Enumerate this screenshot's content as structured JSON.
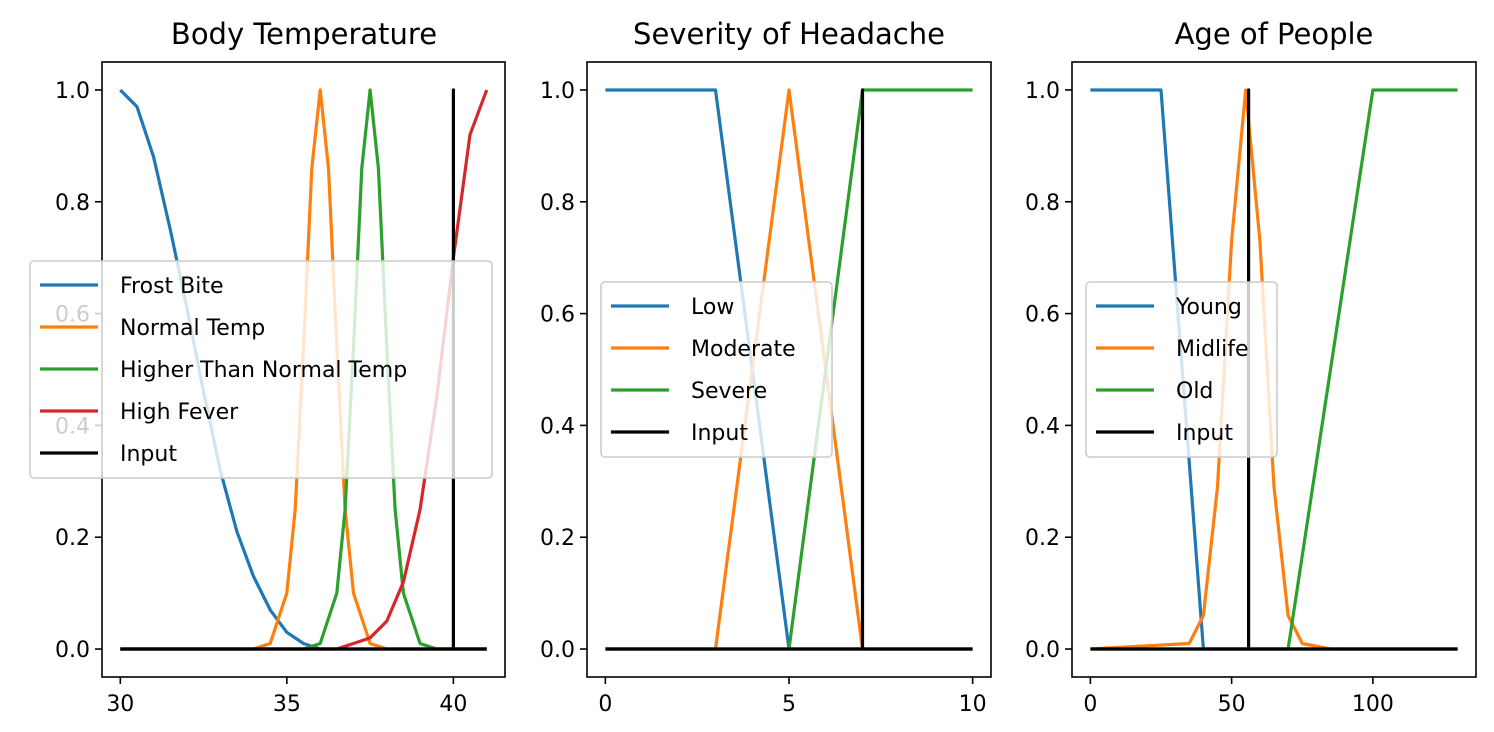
{
  "chart_data": [
    {
      "type": "line",
      "title": "Body Temperature",
      "xlabel": "",
      "ylabel": "",
      "xlim": [
        29.45,
        41.55
      ],
      "ylim": [
        -0.05,
        1.05
      ],
      "xticks": [
        30,
        35,
        40
      ],
      "yticks": [
        0.0,
        0.2,
        0.4,
        0.6,
        0.8,
        1.0
      ],
      "legend_position": "center-left",
      "series": [
        {
          "name": "Frost Bite",
          "color": "#1f77b4",
          "x": [
            30,
            30.5,
            31,
            31.5,
            32,
            32.5,
            33,
            33.5,
            34,
            34.5,
            35,
            35.5,
            36,
            36.5,
            37,
            38,
            39,
            40,
            41
          ],
          "y": [
            1.0,
            0.97,
            0.88,
            0.75,
            0.61,
            0.46,
            0.32,
            0.21,
            0.13,
            0.07,
            0.03,
            0.01,
            0.0,
            0.0,
            0.0,
            0.0,
            0.0,
            0.0,
            0.0
          ]
        },
        {
          "name": "Normal Temp",
          "color": "#ff7f0e",
          "x": [
            30,
            34,
            34.5,
            35,
            35.25,
            35.5,
            35.75,
            36,
            36.25,
            36.5,
            36.75,
            37,
            37.5,
            38,
            39,
            40,
            41
          ],
          "y": [
            0.0,
            0.0,
            0.01,
            0.1,
            0.25,
            0.54,
            0.86,
            1.0,
            0.86,
            0.54,
            0.25,
            0.1,
            0.01,
            0.0,
            0.0,
            0.0,
            0.0
          ]
        },
        {
          "name": "Higher Than Normal Temp",
          "color": "#2ca02c",
          "x": [
            30,
            35.5,
            36,
            36.5,
            36.75,
            37,
            37.25,
            37.5,
            37.75,
            38,
            38.25,
            38.5,
            39,
            39.5,
            40,
            41
          ],
          "y": [
            0.0,
            0.0,
            0.01,
            0.1,
            0.25,
            0.54,
            0.86,
            1.0,
            0.86,
            0.54,
            0.25,
            0.1,
            0.01,
            0.0,
            0.0,
            0.0
          ]
        },
        {
          "name": "High Fever",
          "color": "#d62728",
          "x": [
            30,
            36,
            36.5,
            37,
            37.5,
            38,
            38.5,
            39,
            39.5,
            40,
            40.5,
            41
          ],
          "y": [
            0.0,
            0.0,
            0.0,
            0.01,
            0.02,
            0.05,
            0.12,
            0.25,
            0.45,
            0.7,
            0.92,
            1.0
          ]
        },
        {
          "name": "Input",
          "color": "#000000",
          "x": [
            30,
            40,
            40,
            40,
            41
          ],
          "y": [
            0.0,
            0.0,
            1.0,
            0.0,
            0.0
          ]
        }
      ]
    },
    {
      "type": "line",
      "title": "Severity of Headache",
      "xlabel": "",
      "ylabel": "",
      "xlim": [
        -0.5,
        10.5
      ],
      "ylim": [
        -0.05,
        1.05
      ],
      "xticks": [
        0,
        5,
        10
      ],
      "yticks": [
        0.0,
        0.2,
        0.4,
        0.6,
        0.8,
        1.0
      ],
      "legend_position": "center-left",
      "series": [
        {
          "name": "Low",
          "color": "#1f77b4",
          "x": [
            0,
            3,
            5,
            10
          ],
          "y": [
            1.0,
            1.0,
            0.0,
            0.0
          ]
        },
        {
          "name": "Moderate",
          "color": "#ff7f0e",
          "x": [
            0,
            3,
            5,
            7,
            10
          ],
          "y": [
            0.0,
            0.0,
            1.0,
            0.0,
            0.0
          ]
        },
        {
          "name": "Severe",
          "color": "#2ca02c",
          "x": [
            0,
            5,
            7,
            10
          ],
          "y": [
            0.0,
            0.0,
            1.0,
            1.0
          ]
        },
        {
          "name": "Input",
          "color": "#000000",
          "x": [
            0,
            7,
            7,
            7,
            10
          ],
          "y": [
            0.0,
            0.0,
            1.0,
            0.0,
            0.0
          ]
        }
      ]
    },
    {
      "type": "line",
      "title": "Age of People",
      "xlabel": "",
      "ylabel": "",
      "xlim": [
        -6.5,
        136.5
      ],
      "ylim": [
        -0.05,
        1.05
      ],
      "xticks": [
        0,
        50,
        100
      ],
      "yticks": [
        0.0,
        0.2,
        0.4,
        0.6,
        0.8,
        1.0
      ],
      "legend_position": "center-left",
      "series": [
        {
          "name": "Young",
          "color": "#1f77b4",
          "x": [
            0,
            25,
            40,
            130
          ],
          "y": [
            1.0,
            1.0,
            0.0,
            0.0
          ]
        },
        {
          "name": "Midlife",
          "color": "#ff7f0e",
          "x": [
            0,
            35,
            40,
            45,
            50,
            55,
            60,
            65,
            70,
            75,
            85,
            130
          ],
          "y": [
            0.0,
            0.01,
            0.06,
            0.29,
            0.73,
            1.0,
            0.73,
            0.29,
            0.06,
            0.01,
            0.0,
            0.0
          ]
        },
        {
          "name": "Old",
          "color": "#2ca02c",
          "x": [
            0,
            70,
            100,
            130
          ],
          "y": [
            0.0,
            0.0,
            1.0,
            1.0
          ]
        },
        {
          "name": "Input",
          "color": "#000000",
          "x": [
            0,
            56,
            56,
            56,
            130
          ],
          "y": [
            0.0,
            0.0,
            1.0,
            0.0,
            0.0
          ]
        }
      ]
    }
  ]
}
